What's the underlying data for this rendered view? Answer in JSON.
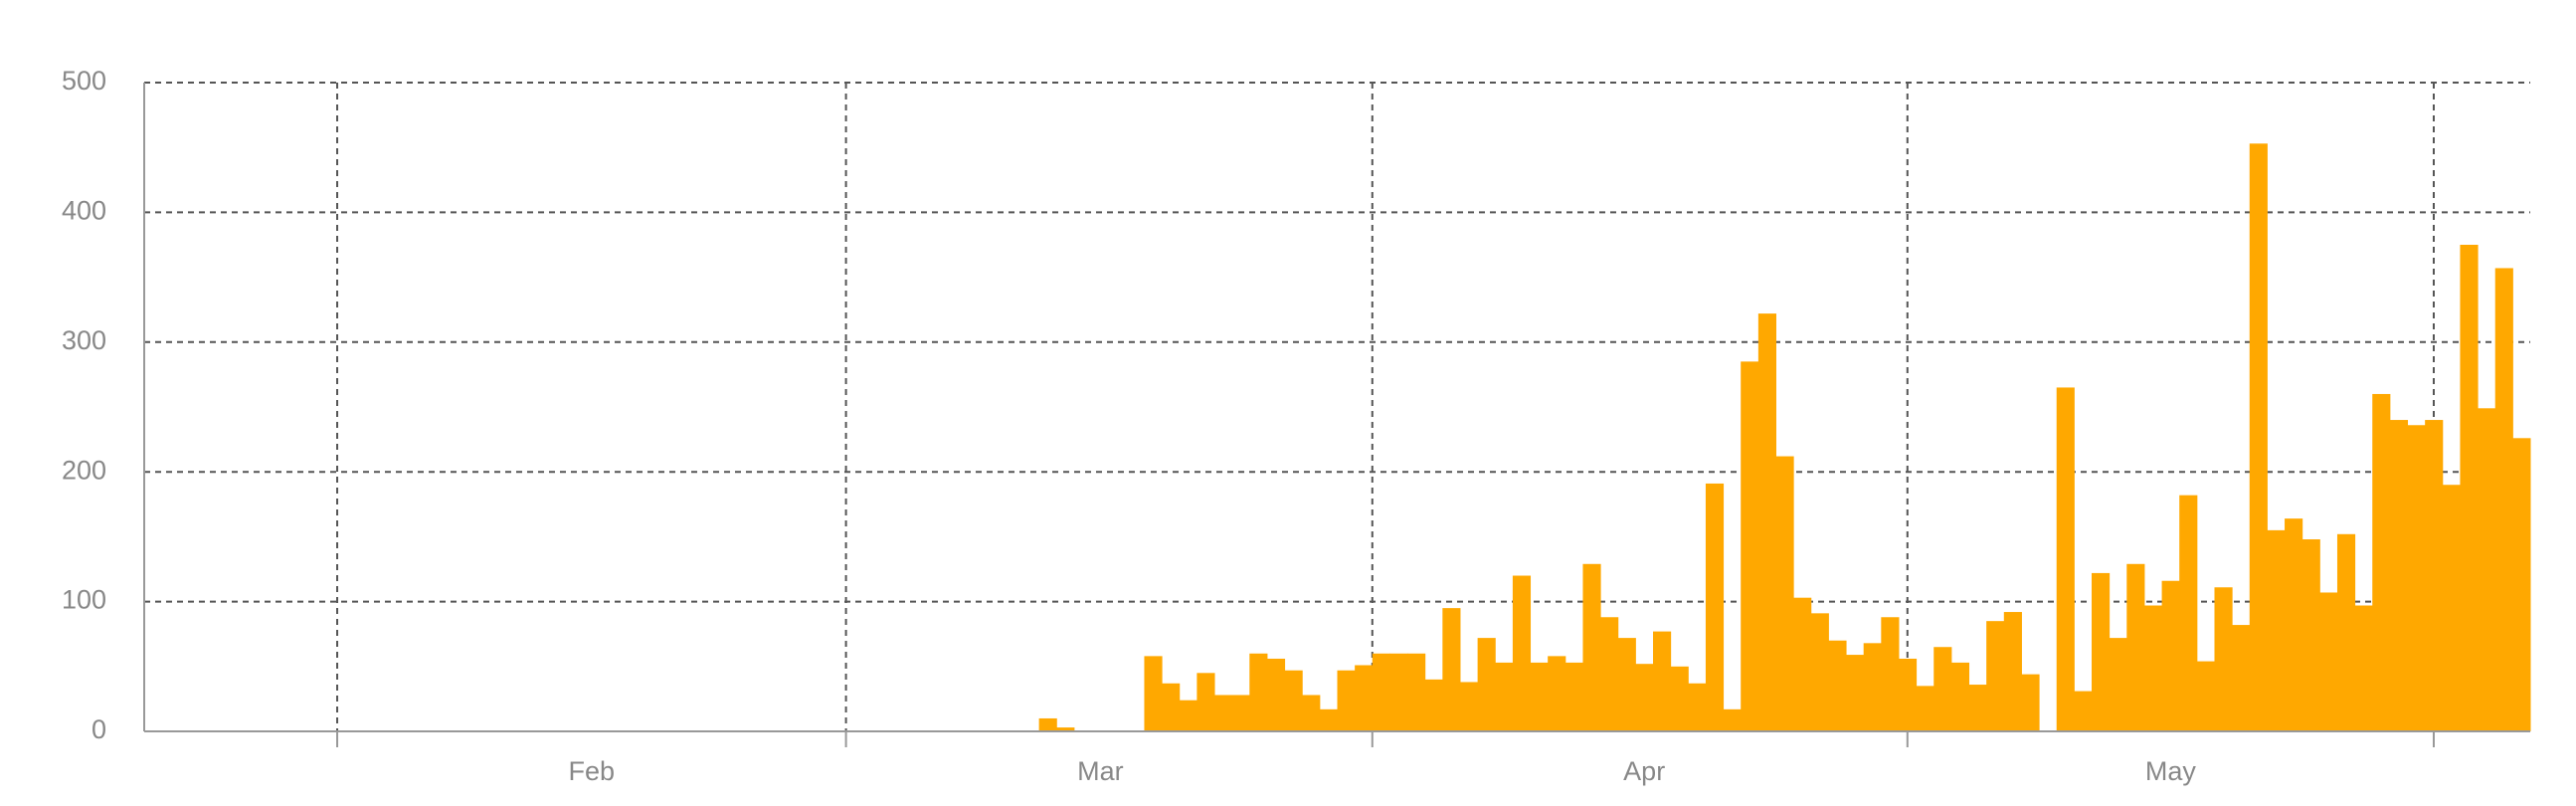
{
  "chart_data": {
    "type": "bar",
    "categories": [
      null,
      null,
      null,
      null,
      null,
      null,
      null,
      null,
      null,
      null,
      null,
      null,
      null,
      null,
      null,
      null,
      null,
      null,
      null,
      null,
      null,
      null,
      null,
      null,
      null,
      "Feb",
      null,
      null,
      null,
      null,
      null,
      null,
      null,
      null,
      null,
      null,
      null,
      null,
      null,
      null,
      null,
      null,
      null,
      null,
      null,
      null,
      null,
      null,
      null,
      null,
      null,
      null,
      null,
      null,
      "Mar",
      null,
      null,
      null,
      null,
      null,
      null,
      null,
      null,
      null,
      null,
      null,
      null,
      null,
      null,
      null,
      null,
      null,
      null,
      null,
      null,
      null,
      null,
      null,
      null,
      null,
      null,
      null,
      null,
      null,
      null,
      "Apr",
      null,
      null,
      null,
      null,
      null,
      null,
      null,
      null,
      null,
      null,
      null,
      null,
      null,
      null,
      null,
      null,
      null,
      null,
      null,
      null,
      null,
      null,
      null,
      null,
      null,
      null,
      null,
      null,
      null,
      "May",
      null,
      null,
      null,
      null,
      null,
      null,
      null,
      null,
      null,
      null,
      null,
      null,
      null,
      null,
      null,
      null,
      null,
      null,
      null,
      null
    ],
    "values": [
      0,
      0,
      0,
      0,
      0,
      0,
      0,
      0,
      0,
      0,
      0,
      0,
      0,
      0,
      0,
      0,
      0,
      0,
      0,
      0,
      0,
      0,
      0,
      0,
      0,
      0,
      0,
      0,
      0,
      0,
      0,
      0,
      0,
      0,
      0,
      0,
      0,
      0,
      0,
      0,
      0,
      0,
      0,
      0,
      0,
      0,
      0,
      0,
      0,
      0,
      0,
      10,
      3,
      0,
      0,
      0,
      0,
      58,
      37,
      24,
      45,
      28,
      28,
      60,
      56,
      47,
      28,
      17,
      47,
      51,
      60,
      60,
      60,
      40,
      95,
      38,
      72,
      53,
      120,
      53,
      58,
      53,
      129,
      88,
      72,
      52,
      77,
      50,
      37,
      191,
      17,
      285,
      322,
      212,
      103,
      91,
      70,
      59,
      68,
      88,
      56,
      35,
      65,
      53,
      36,
      85,
      92,
      44,
      0,
      265,
      31,
      122,
      72,
      129,
      97,
      116,
      182,
      54,
      111,
      82,
      453,
      155,
      164,
      148,
      107,
      152,
      97,
      260,
      240,
      236,
      240,
      190,
      375,
      249,
      357,
      226
    ],
    "color": "#ffa800",
    "ylim": [
      0,
      500
    ],
    "yticks": [
      0,
      100,
      200,
      300,
      400,
      500
    ],
    "grid": true
  }
}
